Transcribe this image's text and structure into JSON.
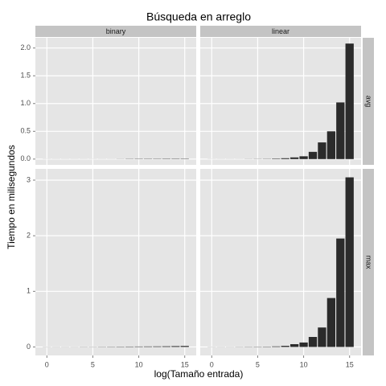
{
  "chart_data": {
    "type": "bar",
    "title": "Búsqueda en arreglo",
    "x_label": "log(Tamaño entrada)",
    "y_label": "Tiempo en milisegundos",
    "columns": [
      "binary",
      "linear"
    ],
    "rows": [
      "avg",
      "max"
    ],
    "x": [
      0,
      1,
      2,
      3,
      4,
      5,
      6,
      7,
      8,
      9,
      10,
      11,
      12,
      13,
      14,
      15
    ],
    "xlim": [
      -1.25,
      16.25
    ],
    "xticks": [
      0,
      5,
      10,
      15
    ],
    "row_axes": [
      {
        "ylim": [
          -0.104,
          2.184
        ],
        "yticks": [
          {
            "value": 0,
            "label": "0.0"
          },
          0.5,
          {
            "value": 1,
            "label": "1.0"
          },
          1.5,
          {
            "value": 2,
            "label": "2.0"
          }
        ]
      },
      {
        "ylim": [
          -0.1525,
          3.2025
        ],
        "yticks": [
          0,
          1,
          2,
          3
        ]
      }
    ],
    "color": "#2b2b2b",
    "grid": true,
    "panels": [
      {
        "row": 0,
        "column": 0,
        "values": [
          0.001,
          0.001,
          0.001,
          0.001,
          0.001,
          0.001,
          0.001,
          0.001,
          0.002,
          0.004,
          0.005,
          0.005,
          0.005,
          0.006,
          0.006,
          0.006
        ]
      },
      {
        "row": 0,
        "column": 1,
        "values": [
          0.001,
          0.001,
          0.001,
          0.001,
          0.002,
          0.003,
          0.004,
          0.008,
          0.015,
          0.03,
          0.05,
          0.13,
          0.3,
          0.5,
          1.02,
          2.08
        ]
      },
      {
        "row": 1,
        "column": 0,
        "values": [
          0.002,
          0.002,
          0.002,
          0.002,
          0.003,
          0.003,
          0.004,
          0.005,
          0.006,
          0.007,
          0.008,
          0.009,
          0.01,
          0.012,
          0.015,
          0.018
        ]
      },
      {
        "row": 1,
        "column": 1,
        "values": [
          0.002,
          0.002,
          0.002,
          0.003,
          0.004,
          0.005,
          0.006,
          0.01,
          0.02,
          0.05,
          0.08,
          0.18,
          0.35,
          0.88,
          1.95,
          3.05
        ]
      }
    ]
  }
}
